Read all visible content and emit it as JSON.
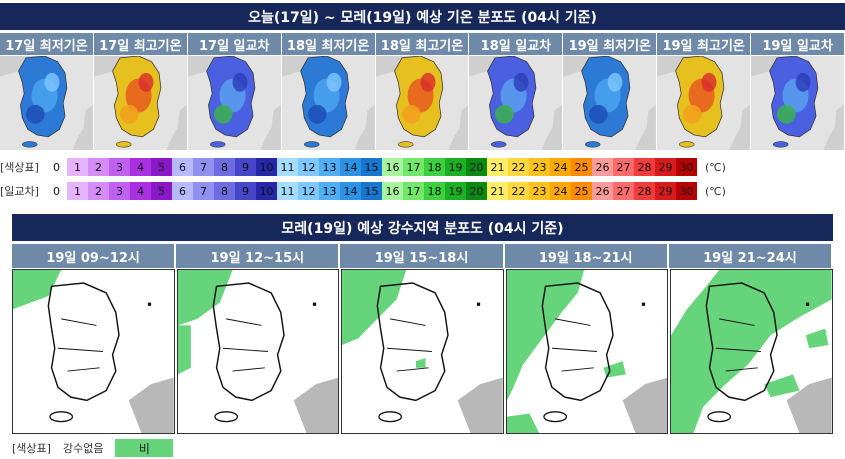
{
  "top_banner": "오늘(17일) ~ 모레(19일) 예상 기온 분포도 (04시 기준)",
  "temp_panels": [
    {
      "label": "17일 최저기온",
      "scheme": "cold"
    },
    {
      "label": "17일 최고기온",
      "scheme": "hot"
    },
    {
      "label": "17일 일교차",
      "scheme": "range"
    },
    {
      "label": "18일 최저기온",
      "scheme": "cold"
    },
    {
      "label": "18일 최고기온",
      "scheme": "hot"
    },
    {
      "label": "18일 일교차",
      "scheme": "range"
    },
    {
      "label": "19일 최저기온",
      "scheme": "cold"
    },
    {
      "label": "19일 최고기온",
      "scheme": "hot"
    },
    {
      "label": "19일 일교차",
      "scheme": "range"
    }
  ],
  "scale_rows": [
    {
      "label": "[색상표]"
    },
    {
      "label": "[일교차]"
    }
  ],
  "scale_values": [
    "0",
    "1",
    "2",
    "3",
    "4",
    "5",
    "6",
    "7",
    "8",
    "9",
    "10",
    "11",
    "12",
    "13",
    "14",
    "15",
    "16",
    "17",
    "18",
    "19",
    "20",
    "21",
    "22",
    "23",
    "24",
    "25",
    "26",
    "27",
    "28",
    "29",
    "30"
  ],
  "scale_colors": [
    "#ffffff",
    "#e6b3ff",
    "#d48cf5",
    "#c060f0",
    "#a830e0",
    "#8a18c8",
    "#b8b8ff",
    "#9090f0",
    "#6c6ce0",
    "#4646c8",
    "#2626a8",
    "#a6dcff",
    "#7ec8ff",
    "#50aef5",
    "#2c92e6",
    "#1676d0",
    "#a8f5a0",
    "#72e86a",
    "#3cd040",
    "#1cb024",
    "#088a12",
    "#ffee66",
    "#ffd840",
    "#ffc21e",
    "#ffa800",
    "#ff8c00",
    "#ff9a9a",
    "#ff6a6a",
    "#f23c3c",
    "#d81a1a",
    "#b80000"
  ],
  "scale_unit": "(℃)",
  "mid_banner": "모레(19일) 예상 강수지역 분포도 (04시 기준)",
  "rain_panels": [
    {
      "label": "19일 09~12시"
    },
    {
      "label": "19일 12~15시"
    },
    {
      "label": "19일 15~18시"
    },
    {
      "label": "19일 18~21시"
    },
    {
      "label": "19일 21~24시"
    }
  ],
  "legend": {
    "label": "[색상표]",
    "none": "강수없음",
    "rain": "비"
  }
}
